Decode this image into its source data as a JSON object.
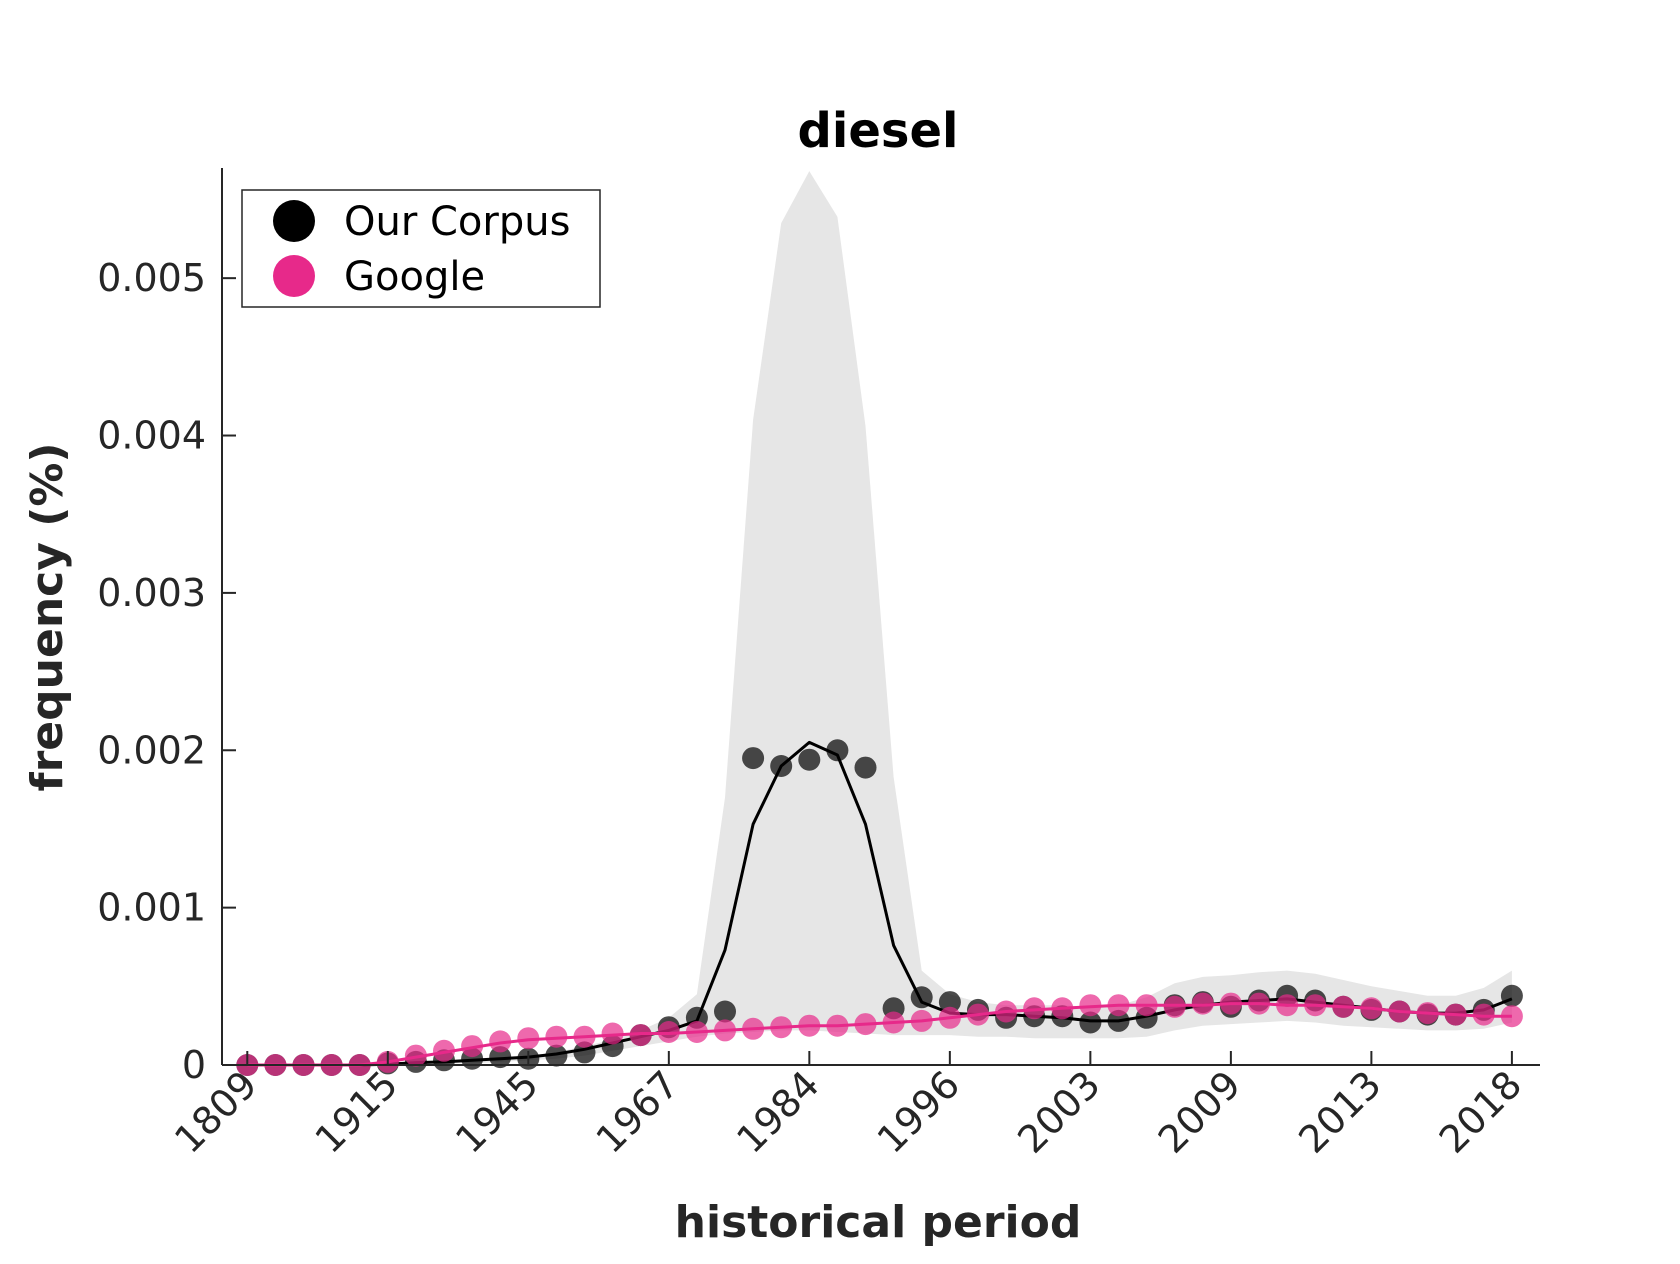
{
  "chart_data": {
    "type": "line",
    "title": "diesel",
    "xlabel": "historical period",
    "ylabel": "frequency (%)",
    "ylim": [
      0,
      0.0057
    ],
    "y_ticks": [
      0,
      0.001,
      0.002,
      0.003,
      0.004,
      0.005
    ],
    "y_tick_labels": [
      "0",
      "0.001",
      "0.002",
      "0.003",
      "0.004",
      "0.005"
    ],
    "x_tick_labels": [
      "1809",
      "1915",
      "1945",
      "1967",
      "1984",
      "1996",
      "2003",
      "2009",
      "2013",
      "2018"
    ],
    "x_tick_positions": [
      1,
      6,
      11,
      16,
      21,
      26,
      31,
      36,
      41,
      46
    ],
    "xlim": [
      0.1,
      47
    ],
    "grid": false,
    "legend_position": "top-left",
    "series": [
      {
        "name": "Our Corpus",
        "color": "#000000",
        "points": [
          0,
          0,
          0,
          0,
          0,
          1e-05,
          2e-05,
          3e-05,
          4e-05,
          5e-05,
          4e-05,
          6e-05,
          8e-05,
          0.00012,
          0.00019,
          0.00024,
          0.0003,
          0.00034,
          0.00195,
          0.0019,
          0.00194,
          0.002,
          0.00189,
          0.00036,
          0.00043,
          0.0004,
          0.00035,
          0.0003,
          0.00031,
          0.00031,
          0.00027,
          0.00028,
          0.0003,
          0.00038,
          0.0004,
          0.00037,
          0.00041,
          0.00044,
          0.00041,
          0.00037,
          0.00035,
          0.00034,
          0.00032,
          0.00032,
          0.00035,
          0.00044
        ],
        "trend": [
          0,
          0,
          0,
          0,
          0,
          5e-06,
          1.5e-05,
          2e-05,
          3e-05,
          4e-05,
          5e-05,
          7e-05,
          0.0001,
          0.00014,
          0.00018,
          0.00022,
          0.00028,
          0.00073,
          0.00153,
          0.0019,
          0.00205,
          0.00197,
          0.00153,
          0.00076,
          0.0004,
          0.00033,
          0.00032,
          0.00032,
          0.00031,
          0.0003,
          0.00028,
          0.00028,
          0.00031,
          0.00035,
          0.00038,
          0.0004,
          0.00041,
          0.00042,
          0.0004,
          0.00038,
          0.00036,
          0.00034,
          0.00033,
          0.00033,
          0.00035,
          0.00042
        ],
        "band_upper": [
          0,
          0,
          0,
          0,
          0,
          1e-05,
          2e-05,
          3e-05,
          4e-05,
          5e-05,
          6e-05,
          8e-05,
          0.00012,
          0.00016,
          0.00022,
          0.0003,
          0.00045,
          0.0017,
          0.0041,
          0.00535,
          0.00568,
          0.00539,
          0.00406,
          0.00183,
          0.0006,
          0.00045,
          0.0004,
          0.00038,
          0.00038,
          0.00038,
          0.00037,
          0.00038,
          0.00043,
          0.00052,
          0.00056,
          0.00057,
          0.00059,
          0.0006,
          0.00058,
          0.00054,
          0.0005,
          0.00047,
          0.00044,
          0.00044,
          0.00049,
          0.0006
        ],
        "band_lower": [
          0,
          0,
          0,
          0,
          0,
          0,
          0,
          1e-05,
          1e-05,
          2e-05,
          3e-05,
          4e-05,
          6e-05,
          9e-05,
          0.00012,
          0.00015,
          0.00018,
          0.0002,
          0.00021,
          0.00022,
          0.00022,
          0.00021,
          0.0002,
          0.00019,
          0.00019,
          0.00019,
          0.00018,
          0.00018,
          0.00017,
          0.00017,
          0.00017,
          0.00017,
          0.00018,
          0.00022,
          0.00025,
          0.00026,
          0.00027,
          0.00028,
          0.00027,
          0.00025,
          0.00024,
          0.00023,
          0.00022,
          0.00022,
          0.00023,
          0.00027
        ]
      },
      {
        "name": "Google",
        "color": "#e7298a",
        "points": [
          0,
          0,
          0,
          0,
          0,
          2e-05,
          6e-05,
          9e-05,
          0.00012,
          0.00015,
          0.00017,
          0.00018,
          0.00018,
          0.0002,
          0.00019,
          0.00021,
          0.00021,
          0.00022,
          0.00023,
          0.00024,
          0.00025,
          0.00025,
          0.00026,
          0.00027,
          0.00028,
          0.0003,
          0.00032,
          0.00034,
          0.00036,
          0.00036,
          0.00038,
          0.00038,
          0.00038,
          0.00037,
          0.00039,
          0.00039,
          0.00039,
          0.00038,
          0.00038,
          0.00037,
          0.00036,
          0.00034,
          0.00033,
          0.00032,
          0.00032,
          0.00031
        ],
        "trend": [
          0,
          0,
          0,
          0,
          0,
          2e-05,
          5e-05,
          8e-05,
          0.00011,
          0.00014,
          0.00016,
          0.00017,
          0.00018,
          0.00019,
          0.0002,
          0.0002,
          0.00021,
          0.00022,
          0.00023,
          0.00024,
          0.00025,
          0.00025,
          0.00026,
          0.00027,
          0.00028,
          0.0003,
          0.00032,
          0.00034,
          0.00035,
          0.00036,
          0.00037,
          0.00038,
          0.00038,
          0.00038,
          0.00038,
          0.00039,
          0.00039,
          0.00038,
          0.00038,
          0.00037,
          0.00036,
          0.00034,
          0.00033,
          0.00032,
          0.00031,
          0.00031
        ]
      }
    ]
  }
}
